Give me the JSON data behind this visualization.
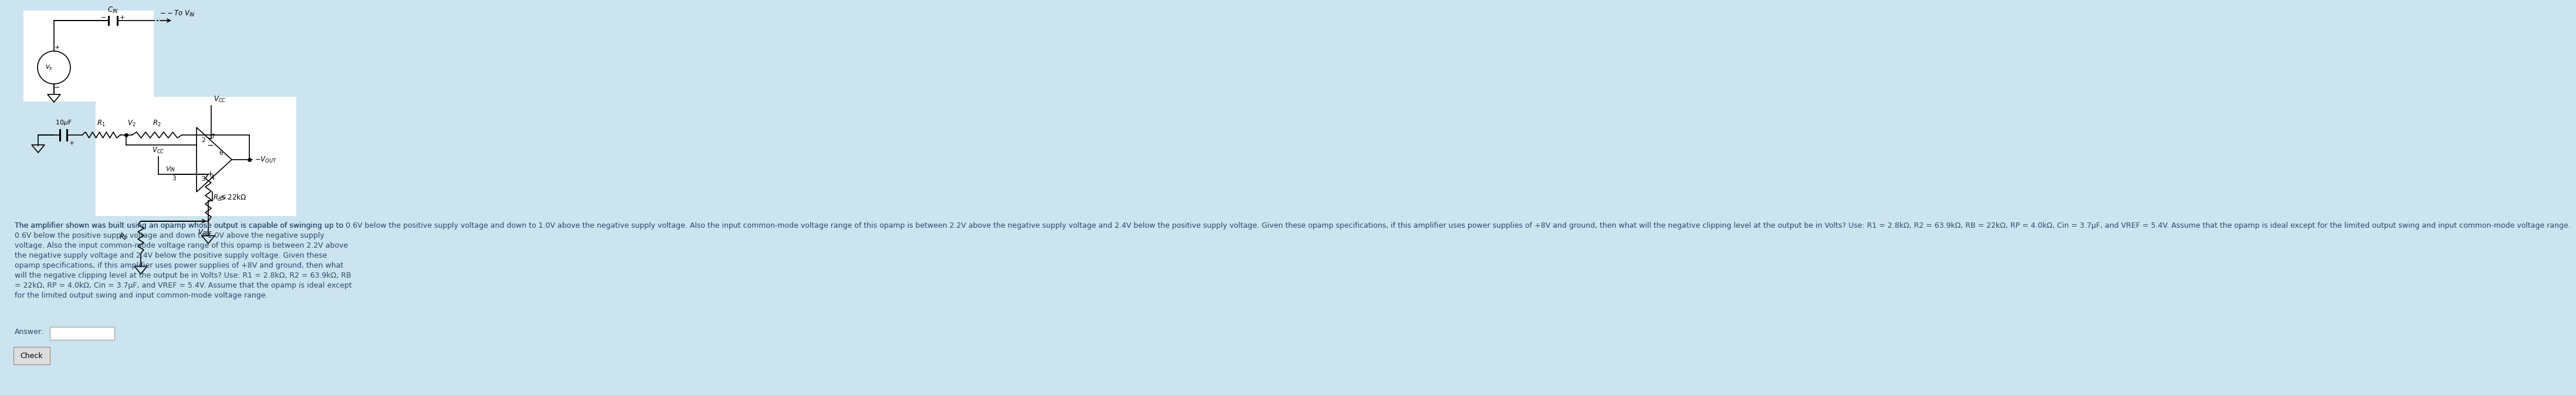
{
  "bg_color": "#cce4ef",
  "text_color": "#2a4a6a",
  "text_body": "The amplifier shown was built using an opamp whose output is capable of swinging up to 0.6V below the positive supply voltage and down to 1.0V above the negative supply voltage. Also the input common-mode voltage range of this opamp is between 2.2V above the negative supply voltage and 2.4V below the positive supply voltage. Given these opamp specifications, if this amplifier uses power supplies of +8V and ground, then what will the negative clipping level at the output be in Volts? Use: R1 = 2.8kΩ, R2 = 63.9kΩ, RB = 22kΩ, RP = 4.0kΩ, Cin = 3.7μF, and VREF = 5.4V. Assume that the opamp is ideal except for the limited output swing and input common-mode voltage range.",
  "answer_label": "Answer:",
  "check_label": "Check",
  "font_size_body": 9.0,
  "font_size_small": 8.0
}
